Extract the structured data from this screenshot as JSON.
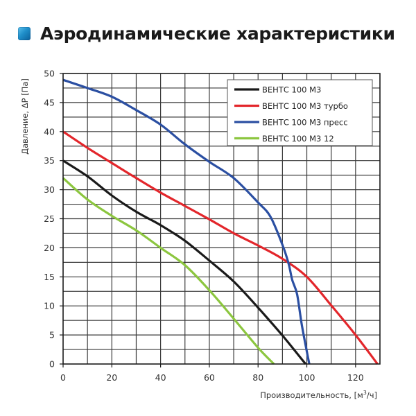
{
  "header": {
    "title": "Аэродинамические характеристики",
    "icon": "blue-square-icon",
    "icon_color": "#1f8fca"
  },
  "chart_data": {
    "type": "line",
    "title": "Аэродинамические характеристики",
    "xlabel": "Производительность, [м³/ч]",
    "xlabel_main": "Производительность, [м",
    "xlabel_sup": "3",
    "xlabel_tail": "/ч]",
    "ylabel": "Давление, ΔP [Па]",
    "xlim": [
      0,
      130
    ],
    "ylim": [
      0,
      50
    ],
    "x_ticks": [
      0,
      20,
      40,
      60,
      80,
      100,
      120
    ],
    "y_ticks": [
      0,
      5,
      10,
      15,
      20,
      25,
      30,
      35,
      40,
      45,
      50
    ],
    "x_grid_step": 10,
    "y_grid_step": 2.5,
    "grid": true,
    "legend_position": "upper right",
    "series": [
      {
        "name": "ВЕНТС 100 М3",
        "color": "#1a1a1a",
        "x": [
          0,
          10,
          20,
          30,
          40,
          50,
          60,
          70,
          80,
          90,
          99.5
        ],
        "y": [
          35,
          32.3,
          29,
          26.2,
          23.9,
          21.2,
          17.8,
          14.2,
          9.7,
          4.9,
          0
        ]
      },
      {
        "name": "ВЕНТС 100 М3 турбо",
        "color": "#e3262b",
        "x": [
          0,
          10,
          20,
          30,
          40,
          50,
          60,
          70,
          80,
          90,
          100,
          110,
          120,
          129
        ],
        "y": [
          40,
          37.2,
          34.6,
          32,
          29.5,
          27.2,
          24.9,
          22.5,
          20.4,
          18.1,
          15,
          10.1,
          5,
          0
        ]
      },
      {
        "name": "ВЕНТС 100 М3 пресс",
        "color": "#2b4fa2",
        "x": [
          0,
          10,
          20,
          30,
          40,
          50,
          60,
          70,
          80,
          85,
          90,
          92.5,
          94,
          96,
          98,
          101
        ],
        "y": [
          48.9,
          47.5,
          46,
          43.7,
          41.2,
          37.8,
          34.8,
          32,
          27.8,
          25.4,
          20.5,
          17.3,
          14.5,
          12,
          6.6,
          0
        ]
      },
      {
        "name": "ВЕНТС 100 М3 12",
        "color": "#8cc63f",
        "x": [
          0,
          10,
          20,
          30,
          40,
          50,
          60,
          70,
          80,
          86.5
        ],
        "y": [
          32,
          28.3,
          25.5,
          23,
          20,
          17,
          12.7,
          7.8,
          2.8,
          0
        ]
      }
    ]
  }
}
